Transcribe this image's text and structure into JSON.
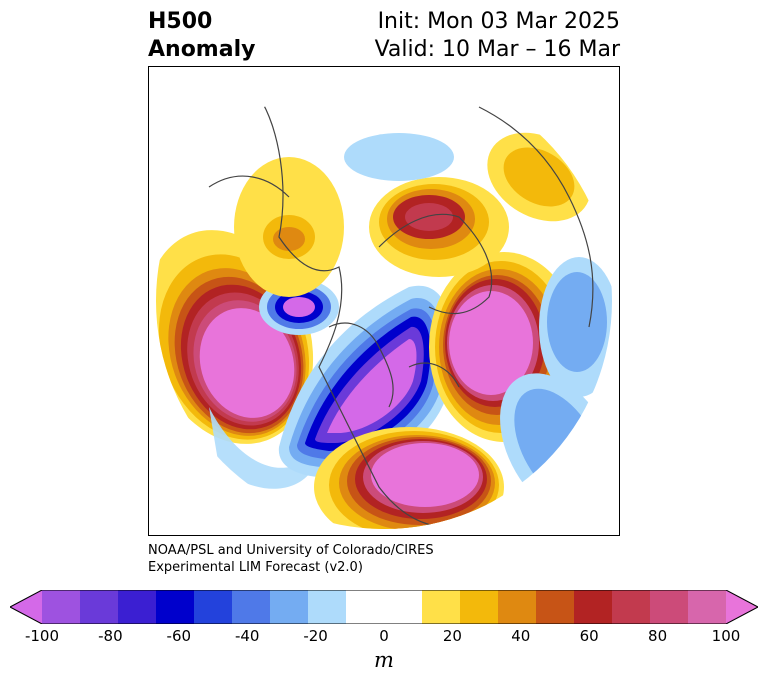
{
  "header": {
    "title_line1": "H500",
    "title_line2": "Anomaly",
    "init": "Init: Mon 03 Mar 2025",
    "valid": "Valid: 10 Mar – 16 Mar"
  },
  "credit": {
    "line1": "NOAA/PSL and University of Colorado/CIRES",
    "line2": "Experimental LIM Forecast (v2.0)"
  },
  "colorbar": {
    "unit": "m",
    "extend": "both",
    "colors": [
      "#d469e8",
      "#9e52e0",
      "#6a3ad9",
      "#3b1fd2",
      "#0000cc",
      "#2342dc",
      "#4f79e8",
      "#74acf2",
      "#aedbfb",
      "#ffffff",
      "#ffffff",
      "#ffe048",
      "#f3b90b",
      "#df8911",
      "#c75416",
      "#b22323",
      "#c23a4e",
      "#cc4b79",
      "#d766ac",
      "#e874da"
    ],
    "tick_labels": [
      "-100",
      "-80",
      "-60",
      "-40",
      "-20",
      "0",
      "20",
      "40",
      "60",
      "80",
      "100"
    ]
  },
  "map": {
    "projection": "north-polar-stereographic",
    "colors": {
      "pos_light": "#ffe048",
      "pos2": "#f3b90b",
      "pos3": "#df8911",
      "pos4": "#c75416",
      "pos5": "#b22323",
      "pos6": "#c23a4e",
      "pos7": "#cc4b79",
      "pos_max": "#e874da",
      "neg_light": "#aedbfb",
      "neg2": "#74acf2",
      "neg3": "#4f79e8",
      "neg4": "#2342dc",
      "neg5": "#0000cc",
      "neg6": "#6a3ad9",
      "neg_max": "#d469e8",
      "coast": "#444444"
    }
  }
}
